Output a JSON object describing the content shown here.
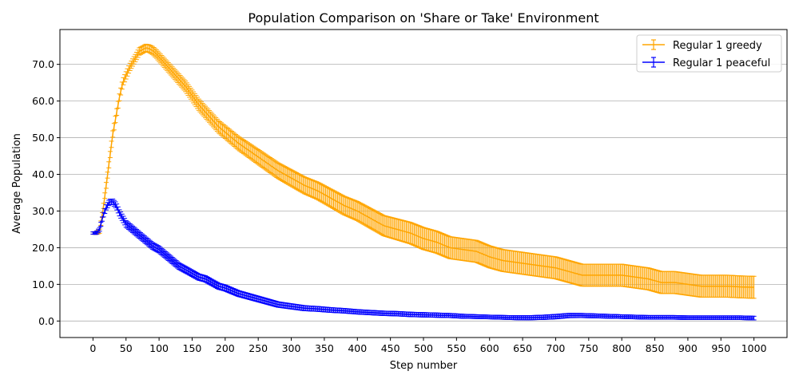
{
  "chart_data": {
    "type": "line",
    "title": "Population Comparison on 'Share or Take' Environment",
    "xlabel": "Step number",
    "ylabel": "Average Population",
    "xlim": [
      -50,
      1050
    ],
    "ylim": [
      -4.5,
      79.5
    ],
    "xticks": [
      0,
      50,
      100,
      150,
      200,
      250,
      300,
      350,
      400,
      450,
      500,
      550,
      600,
      650,
      700,
      750,
      800,
      850,
      900,
      950,
      1000
    ],
    "xtick_labels": [
      "0",
      "50",
      "100",
      "150",
      "200",
      "250",
      "300",
      "350",
      "400",
      "450",
      "500",
      "550",
      "600",
      "650",
      "700",
      "750",
      "800",
      "850",
      "900",
      "950",
      "1000"
    ],
    "yticks": [
      0,
      10,
      20,
      30,
      40,
      50,
      60,
      70
    ],
    "ytick_labels": [
      "0.0",
      "10.0",
      "20.0",
      "30.0",
      "40.0",
      "50.0",
      "60.0",
      "70.0"
    ],
    "grid": "horizontal",
    "legend_position": "top-right",
    "error_bars": true,
    "series": [
      {
        "name": "Regular 1 greedy",
        "color": "#ffa500",
        "points": [
          [
            0,
            24
          ],
          [
            5,
            24
          ],
          [
            10,
            24.5
          ],
          [
            15,
            30
          ],
          [
            20,
            37
          ],
          [
            25,
            44
          ],
          [
            30,
            51
          ],
          [
            35,
            56
          ],
          [
            40,
            61
          ],
          [
            45,
            65
          ],
          [
            50,
            67
          ],
          [
            55,
            69
          ],
          [
            60,
            70.5
          ],
          [
            65,
            72
          ],
          [
            70,
            73.5
          ],
          [
            75,
            74
          ],
          [
            80,
            74.5
          ],
          [
            85,
            74.3
          ],
          [
            90,
            73.8
          ],
          [
            95,
            73
          ],
          [
            100,
            72
          ],
          [
            110,
            70
          ],
          [
            120,
            68
          ],
          [
            130,
            66
          ],
          [
            140,
            64
          ],
          [
            150,
            61.5
          ],
          [
            160,
            59
          ],
          [
            170,
            57
          ],
          [
            180,
            55
          ],
          [
            190,
            53
          ],
          [
            200,
            51.5
          ],
          [
            220,
            48.5
          ],
          [
            240,
            46
          ],
          [
            260,
            43.5
          ],
          [
            280,
            41
          ],
          [
            300,
            39
          ],
          [
            320,
            37
          ],
          [
            340,
            35.5
          ],
          [
            350,
            34.5
          ],
          [
            380,
            31.5
          ],
          [
            400,
            30
          ],
          [
            420,
            28
          ],
          [
            440,
            26
          ],
          [
            460,
            25
          ],
          [
            480,
            24
          ],
          [
            500,
            22.5
          ],
          [
            520,
            21.5
          ],
          [
            540,
            20
          ],
          [
            560,
            19.5
          ],
          [
            580,
            19
          ],
          [
            600,
            17.5
          ],
          [
            620,
            16.5
          ],
          [
            640,
            16
          ],
          [
            660,
            15.5
          ],
          [
            680,
            15
          ],
          [
            700,
            14.5
          ],
          [
            720,
            13.5
          ],
          [
            740,
            12.5
          ],
          [
            760,
            12.5
          ],
          [
            780,
            12.5
          ],
          [
            800,
            12.5
          ],
          [
            820,
            12
          ],
          [
            840,
            11.5
          ],
          [
            860,
            10.5
          ],
          [
            880,
            10.5
          ],
          [
            900,
            10
          ],
          [
            920,
            9.5
          ],
          [
            940,
            9.5
          ],
          [
            960,
            9.5
          ],
          [
            980,
            9.3
          ],
          [
            1000,
            9.2
          ]
        ],
        "error": [
          [
            0,
            0.3
          ],
          [
            20,
            0.8
          ],
          [
            50,
            1
          ],
          [
            80,
            1
          ],
          [
            100,
            1.2
          ],
          [
            150,
            1.5
          ],
          [
            200,
            1.7
          ],
          [
            250,
            2
          ],
          [
            300,
            2.2
          ],
          [
            350,
            2.4
          ],
          [
            400,
            2.6
          ],
          [
            450,
            2.8
          ],
          [
            500,
            3
          ],
          [
            550,
            3
          ],
          [
            600,
            3
          ],
          [
            650,
            3
          ],
          [
            700,
            3
          ],
          [
            750,
            3
          ],
          [
            800,
            3
          ],
          [
            850,
            3
          ],
          [
            900,
            3
          ],
          [
            950,
            3
          ],
          [
            1000,
            3
          ]
        ]
      },
      {
        "name": "Regular 1 peaceful",
        "color": "#0000ff",
        "points": [
          [
            0,
            24
          ],
          [
            5,
            24
          ],
          [
            10,
            25
          ],
          [
            15,
            28.5
          ],
          [
            20,
            31
          ],
          [
            25,
            32.5
          ],
          [
            30,
            32.5
          ],
          [
            35,
            31.5
          ],
          [
            40,
            29.5
          ],
          [
            45,
            28
          ],
          [
            50,
            26.5
          ],
          [
            60,
            25
          ],
          [
            70,
            23.5
          ],
          [
            80,
            22
          ],
          [
            90,
            20.5
          ],
          [
            100,
            19.5
          ],
          [
            110,
            18
          ],
          [
            120,
            16.5
          ],
          [
            130,
            15
          ],
          [
            140,
            14
          ],
          [
            150,
            13
          ],
          [
            160,
            12
          ],
          [
            170,
            11.5
          ],
          [
            180,
            10.5
          ],
          [
            190,
            9.5
          ],
          [
            200,
            9
          ],
          [
            220,
            7.5
          ],
          [
            240,
            6.5
          ],
          [
            260,
            5.5
          ],
          [
            280,
            4.5
          ],
          [
            300,
            4
          ],
          [
            320,
            3.5
          ],
          [
            340,
            3.3
          ],
          [
            360,
            3
          ],
          [
            380,
            2.8
          ],
          [
            400,
            2.5
          ],
          [
            420,
            2.3
          ],
          [
            440,
            2.1
          ],
          [
            460,
            2
          ],
          [
            480,
            1.8
          ],
          [
            500,
            1.7
          ],
          [
            520,
            1.6
          ],
          [
            540,
            1.5
          ],
          [
            560,
            1.3
          ],
          [
            580,
            1.2
          ],
          [
            600,
            1.1
          ],
          [
            620,
            1
          ],
          [
            640,
            0.9
          ],
          [
            660,
            0.9
          ],
          [
            680,
            1
          ],
          [
            700,
            1.2
          ],
          [
            720,
            1.5
          ],
          [
            740,
            1.5
          ],
          [
            760,
            1.4
          ],
          [
            780,
            1.3
          ],
          [
            800,
            1.2
          ],
          [
            820,
            1.1
          ],
          [
            840,
            1
          ],
          [
            860,
            1
          ],
          [
            880,
            1
          ],
          [
            900,
            0.9
          ],
          [
            920,
            0.9
          ],
          [
            940,
            0.9
          ],
          [
            960,
            0.9
          ],
          [
            980,
            0.9
          ],
          [
            1000,
            0.8
          ]
        ],
        "error": [
          [
            0,
            0.3
          ],
          [
            20,
            0.7
          ],
          [
            50,
            0.9
          ],
          [
            100,
            0.9
          ],
          [
            200,
            0.8
          ],
          [
            300,
            0.7
          ],
          [
            400,
            0.6
          ],
          [
            500,
            0.6
          ],
          [
            600,
            0.5
          ],
          [
            700,
            0.6
          ],
          [
            800,
            0.5
          ],
          [
            900,
            0.5
          ],
          [
            1000,
            0.5
          ]
        ]
      }
    ]
  }
}
